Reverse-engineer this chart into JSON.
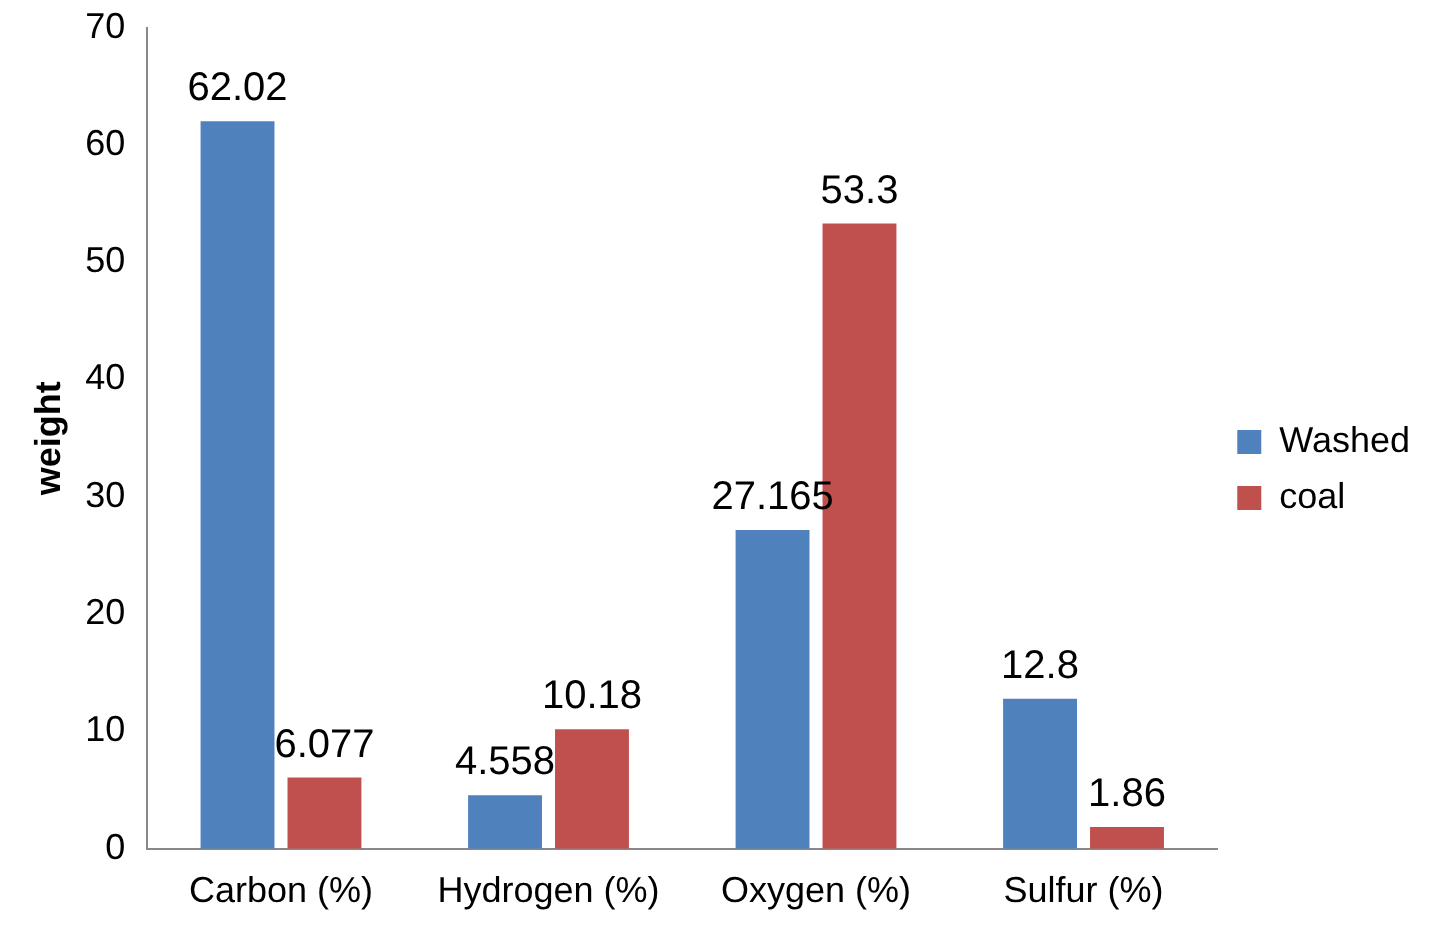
{
  "chart_data": {
    "type": "bar",
    "ylabel": "weight",
    "categories": [
      "Carbon (%)",
      "Hydrogen (%)",
      "Oxygen (%)",
      "Sulfur (%)"
    ],
    "series": [
      {
        "name": "Washed",
        "color": "#4f81bd",
        "values": [
          62.02,
          4.558,
          27.165,
          12.8
        ]
      },
      {
        "name": "coal",
        "color": "#c0504d",
        "values": [
          6.077,
          10.18,
          53.3,
          1.86
        ]
      }
    ],
    "ylim": [
      0,
      70
    ],
    "yticks": [
      0,
      10,
      20,
      30,
      40,
      50,
      60,
      70
    ],
    "grid": false,
    "legend": "right",
    "data_labels": true
  }
}
